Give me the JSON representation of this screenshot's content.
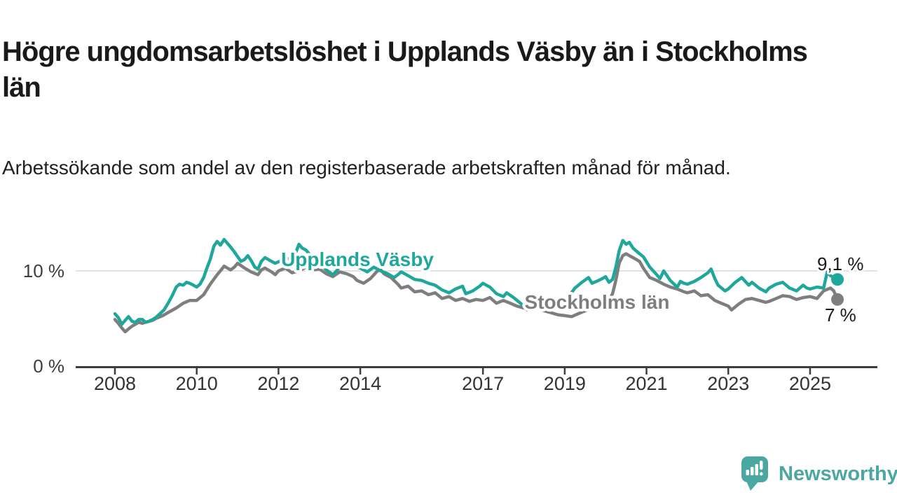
{
  "header": {
    "title": "Högre ungdomsarbetslöshet i Upplands Väsby än i Stockholms län",
    "subtitle": "Arbetssökande som andel av den registerbaserade arbetskraften månad för månad."
  },
  "branding": {
    "name": "Newsworthy",
    "logo_icon": "speech-bubble-bar-chart",
    "color": "#4BA7A1"
  },
  "chart_data": {
    "type": "line",
    "title": "Högre ungdomsarbetslöshet i Upplands Väsby än i Stockholms län",
    "subtitle": "Arbetssökande som andel av den registerbaserade arbetskraften månad för månad.",
    "x_axis": {
      "ticks": [
        2008,
        2010,
        2012,
        2014,
        2017,
        2019,
        2021,
        2023,
        2025
      ],
      "range": [
        2007.05,
        2026.6
      ],
      "unit": "year"
    },
    "y_axis": {
      "ticks": [
        {
          "value": 0,
          "label": "0 %"
        },
        {
          "value": 10,
          "label": "10 %"
        }
      ],
      "range": [
        0,
        14.8
      ],
      "gridlines": [
        10
      ],
      "unit": "%"
    },
    "grid": "single-horizontal-gridline-at-10",
    "legend_position": "inline-labels-on-lines",
    "series": [
      {
        "name": "Upplands Väsby",
        "color": "#1FA79B",
        "end_label": "9,1 %",
        "end_value": 9.1,
        "points": [
          [
            2008.0,
            5.5
          ],
          [
            2008.08,
            5.1
          ],
          [
            2008.17,
            4.4
          ],
          [
            2008.25,
            4.8
          ],
          [
            2008.33,
            5.2
          ],
          [
            2008.42,
            4.7
          ],
          [
            2008.5,
            4.6
          ],
          [
            2008.58,
            4.9
          ],
          [
            2008.67,
            4.9
          ],
          [
            2008.75,
            4.6
          ],
          [
            2008.83,
            4.7
          ],
          [
            2008.92,
            4.9
          ],
          [
            2009.0,
            5.1
          ],
          [
            2009.1,
            5.5
          ],
          [
            2009.2,
            5.9
          ],
          [
            2009.3,
            6.6
          ],
          [
            2009.4,
            7.4
          ],
          [
            2009.5,
            8.3
          ],
          [
            2009.58,
            8.6
          ],
          [
            2009.67,
            8.5
          ],
          [
            2009.75,
            8.8
          ],
          [
            2009.83,
            8.7
          ],
          [
            2009.92,
            8.5
          ],
          [
            2010.0,
            8.3
          ],
          [
            2010.08,
            8.6
          ],
          [
            2010.17,
            9.3
          ],
          [
            2010.25,
            10.3
          ],
          [
            2010.33,
            11.2
          ],
          [
            2010.42,
            12.6
          ],
          [
            2010.5,
            13.1
          ],
          [
            2010.58,
            12.7
          ],
          [
            2010.67,
            13.3
          ],
          [
            2010.75,
            12.9
          ],
          [
            2010.83,
            12.5
          ],
          [
            2010.92,
            12.0
          ],
          [
            2011.08,
            11.0
          ],
          [
            2011.17,
            11.2
          ],
          [
            2011.25,
            11.6
          ],
          [
            2011.33,
            11.1
          ],
          [
            2011.42,
            10.4
          ],
          [
            2011.5,
            10.2
          ],
          [
            2011.58,
            11.0
          ],
          [
            2011.67,
            11.4
          ],
          [
            2011.75,
            11.2
          ],
          [
            2011.83,
            11.0
          ],
          [
            2011.92,
            10.8
          ],
          [
            2012.08,
            11.1
          ],
          [
            2012.25,
            11.3
          ],
          [
            2012.33,
            11.0
          ],
          [
            2012.42,
            11.9
          ],
          [
            2012.5,
            12.8
          ],
          [
            2012.58,
            12.4
          ],
          [
            2012.67,
            12.2
          ],
          [
            2012.83,
            11.4
          ],
          [
            2012.92,
            11.0
          ],
          [
            2013.0,
            10.8
          ],
          [
            2013.17,
            10.1
          ],
          [
            2013.33,
            9.6
          ],
          [
            2013.42,
            10.0
          ],
          [
            2013.5,
            10.5
          ],
          [
            2013.58,
            10.8
          ],
          [
            2013.67,
            10.9
          ],
          [
            2013.83,
            10.6
          ],
          [
            2013.92,
            10.4
          ],
          [
            2014.0,
            10.3
          ],
          [
            2014.17,
            9.9
          ],
          [
            2014.33,
            10.4
          ],
          [
            2014.5,
            10.0
          ],
          [
            2014.67,
            9.7
          ],
          [
            2014.83,
            9.3
          ],
          [
            2014.92,
            9.6
          ],
          [
            2015.0,
            9.9
          ],
          [
            2015.17,
            9.5
          ],
          [
            2015.33,
            9.1
          ],
          [
            2015.5,
            9.0
          ],
          [
            2015.67,
            8.7
          ],
          [
            2015.83,
            8.5
          ],
          [
            2016.0,
            8.0
          ],
          [
            2016.17,
            7.7
          ],
          [
            2016.33,
            8.1
          ],
          [
            2016.5,
            8.4
          ],
          [
            2016.58,
            7.6
          ],
          [
            2016.75,
            7.9
          ],
          [
            2016.92,
            8.4
          ],
          [
            2017.0,
            8.7
          ],
          [
            2017.17,
            8.3
          ],
          [
            2017.33,
            7.6
          ],
          [
            2017.5,
            7.3
          ],
          [
            2017.58,
            7.7
          ],
          [
            2017.75,
            7.2
          ],
          [
            2017.92,
            6.6
          ],
          [
            2018.08,
            5.9
          ],
          [
            2018.25,
            6.3
          ],
          [
            2018.42,
            6.7
          ],
          [
            2018.58,
            6.5
          ],
          [
            2018.75,
            6.3
          ],
          [
            2018.92,
            6.7
          ],
          [
            2019.08,
            7.2
          ],
          [
            2019.25,
            8.2
          ],
          [
            2019.42,
            8.8
          ],
          [
            2019.58,
            9.3
          ],
          [
            2019.67,
            8.7
          ],
          [
            2019.83,
            9.0
          ],
          [
            2019.92,
            9.2
          ],
          [
            2020.0,
            9.4
          ],
          [
            2020.08,
            8.8
          ],
          [
            2020.17,
            9.1
          ],
          [
            2020.25,
            10.4
          ],
          [
            2020.33,
            12.1
          ],
          [
            2020.42,
            13.2
          ],
          [
            2020.5,
            12.8
          ],
          [
            2020.58,
            13.0
          ],
          [
            2020.67,
            12.4
          ],
          [
            2020.83,
            11.8
          ],
          [
            2020.92,
            11.5
          ],
          [
            2021.08,
            10.4
          ],
          [
            2021.25,
            9.6
          ],
          [
            2021.33,
            9.2
          ],
          [
            2021.42,
            10.0
          ],
          [
            2021.58,
            9.0
          ],
          [
            2021.75,
            8.3
          ],
          [
            2021.83,
            8.9
          ],
          [
            2021.92,
            8.7
          ],
          [
            2022.0,
            8.6
          ],
          [
            2022.17,
            8.9
          ],
          [
            2022.33,
            9.3
          ],
          [
            2022.5,
            9.8
          ],
          [
            2022.58,
            10.2
          ],
          [
            2022.67,
            9.2
          ],
          [
            2022.75,
            8.5
          ],
          [
            2022.92,
            7.9
          ],
          [
            2023.0,
            8.1
          ],
          [
            2023.17,
            8.8
          ],
          [
            2023.33,
            9.3
          ],
          [
            2023.5,
            8.5
          ],
          [
            2023.58,
            8.8
          ],
          [
            2023.75,
            8.2
          ],
          [
            2023.92,
            7.8
          ],
          [
            2024.0,
            8.2
          ],
          [
            2024.17,
            8.6
          ],
          [
            2024.33,
            8.8
          ],
          [
            2024.5,
            8.2
          ],
          [
            2024.67,
            7.9
          ],
          [
            2024.83,
            8.5
          ],
          [
            2024.92,
            8.2
          ],
          [
            2025.0,
            8.1
          ],
          [
            2025.17,
            8.3
          ],
          [
            2025.33,
            8.2
          ],
          [
            2025.42,
            9.9
          ],
          [
            2025.5,
            9.5
          ],
          [
            2025.67,
            9.1
          ]
        ]
      },
      {
        "name": "Stockholms län",
        "color": "#7E7E7E",
        "end_label": "7 %",
        "end_value": 7.0,
        "points": [
          [
            2008.0,
            4.9
          ],
          [
            2008.08,
            4.5
          ],
          [
            2008.17,
            4.0
          ],
          [
            2008.25,
            3.6
          ],
          [
            2008.33,
            3.9
          ],
          [
            2008.42,
            4.2
          ],
          [
            2008.5,
            4.4
          ],
          [
            2008.58,
            4.6
          ],
          [
            2008.67,
            4.5
          ],
          [
            2008.75,
            4.6
          ],
          [
            2008.83,
            4.7
          ],
          [
            2008.92,
            4.8
          ],
          [
            2009.0,
            5.0
          ],
          [
            2009.17,
            5.3
          ],
          [
            2009.33,
            5.7
          ],
          [
            2009.5,
            6.1
          ],
          [
            2009.67,
            6.6
          ],
          [
            2009.83,
            6.9
          ],
          [
            2009.92,
            6.9
          ],
          [
            2010.0,
            6.9
          ],
          [
            2010.17,
            7.5
          ],
          [
            2010.33,
            8.6
          ],
          [
            2010.5,
            9.6
          ],
          [
            2010.58,
            10.0
          ],
          [
            2010.67,
            10.5
          ],
          [
            2010.75,
            10.3
          ],
          [
            2010.83,
            10.1
          ],
          [
            2010.92,
            10.4
          ],
          [
            2011.0,
            10.8
          ],
          [
            2011.17,
            10.3
          ],
          [
            2011.33,
            9.9
          ],
          [
            2011.5,
            9.6
          ],
          [
            2011.58,
            10.1
          ],
          [
            2011.67,
            10.3
          ],
          [
            2011.83,
            9.9
          ],
          [
            2011.92,
            9.6
          ],
          [
            2012.0,
            10.0
          ],
          [
            2012.17,
            10.3
          ],
          [
            2012.33,
            9.8
          ],
          [
            2012.5,
            10.0
          ],
          [
            2012.67,
            10.4
          ],
          [
            2012.83,
            10.1
          ],
          [
            2013.0,
            10.2
          ],
          [
            2013.17,
            9.7
          ],
          [
            2013.33,
            9.4
          ],
          [
            2013.5,
            9.9
          ],
          [
            2013.67,
            9.7
          ],
          [
            2013.83,
            9.4
          ],
          [
            2013.92,
            9.0
          ],
          [
            2014.08,
            8.7
          ],
          [
            2014.25,
            9.2
          ],
          [
            2014.42,
            10.0
          ],
          [
            2014.5,
            10.1
          ],
          [
            2014.58,
            9.7
          ],
          [
            2014.75,
            9.3
          ],
          [
            2014.92,
            8.6
          ],
          [
            2015.0,
            8.2
          ],
          [
            2015.17,
            8.4
          ],
          [
            2015.33,
            7.8
          ],
          [
            2015.5,
            7.9
          ],
          [
            2015.67,
            7.5
          ],
          [
            2015.83,
            7.7
          ],
          [
            2016.0,
            7.1
          ],
          [
            2016.17,
            7.3
          ],
          [
            2016.33,
            6.9
          ],
          [
            2016.5,
            7.1
          ],
          [
            2016.67,
            6.8
          ],
          [
            2016.83,
            7.0
          ],
          [
            2017.0,
            6.9
          ],
          [
            2017.17,
            7.2
          ],
          [
            2017.33,
            6.6
          ],
          [
            2017.5,
            6.9
          ],
          [
            2017.67,
            6.6
          ],
          [
            2017.83,
            6.3
          ],
          [
            2018.0,
            6.1
          ],
          [
            2018.17,
            5.9
          ],
          [
            2018.33,
            6.1
          ],
          [
            2018.5,
            5.8
          ],
          [
            2018.67,
            5.6
          ],
          [
            2018.83,
            5.4
          ],
          [
            2019.0,
            5.3
          ],
          [
            2019.17,
            5.2
          ],
          [
            2019.33,
            5.5
          ],
          [
            2019.5,
            5.8
          ],
          [
            2019.67,
            6.1
          ],
          [
            2019.83,
            6.3
          ],
          [
            2020.0,
            6.6
          ],
          [
            2020.08,
            6.9
          ],
          [
            2020.17,
            7.6
          ],
          [
            2020.25,
            9.0
          ],
          [
            2020.33,
            10.8
          ],
          [
            2020.42,
            11.6
          ],
          [
            2020.5,
            11.8
          ],
          [
            2020.58,
            11.6
          ],
          [
            2020.67,
            11.4
          ],
          [
            2020.83,
            11.0
          ],
          [
            2020.92,
            10.3
          ],
          [
            2021.08,
            9.3
          ],
          [
            2021.25,
            9.0
          ],
          [
            2021.42,
            8.6
          ],
          [
            2021.58,
            8.3
          ],
          [
            2021.75,
            8.1
          ],
          [
            2021.92,
            7.8
          ],
          [
            2022.0,
            7.7
          ],
          [
            2022.17,
            7.9
          ],
          [
            2022.33,
            7.4
          ],
          [
            2022.5,
            7.5
          ],
          [
            2022.67,
            6.9
          ],
          [
            2022.83,
            6.6
          ],
          [
            2023.0,
            6.3
          ],
          [
            2023.08,
            5.9
          ],
          [
            2023.25,
            6.5
          ],
          [
            2023.42,
            7.0
          ],
          [
            2023.58,
            7.1
          ],
          [
            2023.75,
            6.9
          ],
          [
            2023.92,
            6.7
          ],
          [
            2024.0,
            6.8
          ],
          [
            2024.17,
            7.1
          ],
          [
            2024.33,
            7.4
          ],
          [
            2024.5,
            7.3
          ],
          [
            2024.67,
            7.0
          ],
          [
            2024.83,
            7.2
          ],
          [
            2025.0,
            7.3
          ],
          [
            2025.17,
            7.1
          ],
          [
            2025.33,
            7.9
          ],
          [
            2025.5,
            8.2
          ],
          [
            2025.58,
            7.9
          ],
          [
            2025.67,
            7.0
          ]
        ]
      }
    ]
  }
}
